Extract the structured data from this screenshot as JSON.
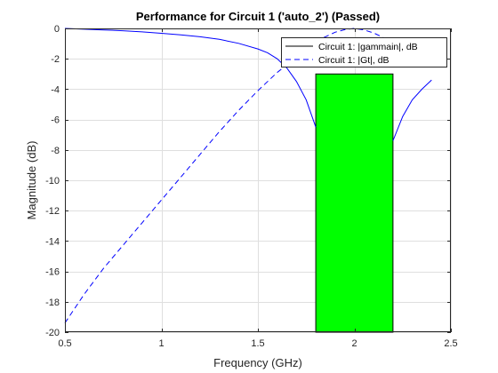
{
  "chart_data": {
    "type": "line",
    "title": "Performance for Circuit 1 ('auto_2')  (Passed)",
    "xlabel": "Frequency (GHz)",
    "ylabel": "Magnitude (dB)",
    "xlim": [
      0.5,
      2.5
    ],
    "ylim": [
      -20,
      0
    ],
    "xticks": [
      0.5,
      1,
      1.5,
      2,
      2.5
    ],
    "xtick_labels": [
      "0.5",
      "1",
      "1.5",
      "2",
      "2.5"
    ],
    "yticks": [
      0,
      -2,
      -4,
      -6,
      -8,
      -10,
      -12,
      -14,
      -16,
      -18,
      -20
    ],
    "ytick_labels": [
      "0",
      "-2",
      "-4",
      "-6",
      "-8",
      "-10",
      "-12",
      "-14",
      "-16",
      "-18",
      "-20"
    ],
    "grid": true,
    "legend_position": "top-right",
    "passband": {
      "x": [
        1.8,
        2.2
      ],
      "y": [
        -20,
        -3
      ],
      "color": "#00ff00"
    },
    "series": [
      {
        "name": "Circuit 1: |gammain|, dB",
        "style": "solid",
        "color": "#0000ff",
        "segments": [
          {
            "x": [
              0.5,
              0.6,
              0.7,
              0.8,
              0.9,
              1.0,
              1.1,
              1.2,
              1.3,
              1.4,
              1.5,
              1.55,
              1.6,
              1.65,
              1.7,
              1.75,
              1.8
            ],
            "y": [
              0.0,
              -0.05,
              -0.1,
              -0.15,
              -0.23,
              -0.32,
              -0.42,
              -0.55,
              -0.72,
              -0.98,
              -1.35,
              -1.6,
              -2.0,
              -2.6,
              -3.5,
              -4.7,
              -6.5
            ]
          },
          {
            "x": [
              2.2,
              2.25,
              2.3,
              2.35,
              2.4
            ],
            "y": [
              -7.4,
              -5.8,
              -4.7,
              -4.0,
              -3.4
            ]
          }
        ]
      },
      {
        "name": "Circuit 1: |Gt|, dB",
        "style": "dashed",
        "color": "#0000ff",
        "segments": [
          {
            "x": [
              0.5,
              0.6,
              0.7,
              0.8,
              0.9,
              1.0,
              1.1,
              1.2,
              1.3,
              1.4,
              1.5,
              1.6,
              1.65
            ],
            "y": [
              -19.4,
              -17.5,
              -15.8,
              -14.3,
              -12.8,
              -11.3,
              -9.8,
              -8.3,
              -6.8,
              -5.4,
              -4.1,
              -2.9,
              -2.4
            ]
          },
          {
            "x": [
              1.8,
              1.85,
              1.9,
              1.95,
              2.0,
              2.05,
              2.1,
              2.15,
              2.2
            ],
            "y": [
              -0.85,
              -0.55,
              -0.25,
              -0.08,
              0.0,
              -0.1,
              -0.3,
              -0.6,
              -1.0
            ]
          }
        ]
      }
    ]
  }
}
